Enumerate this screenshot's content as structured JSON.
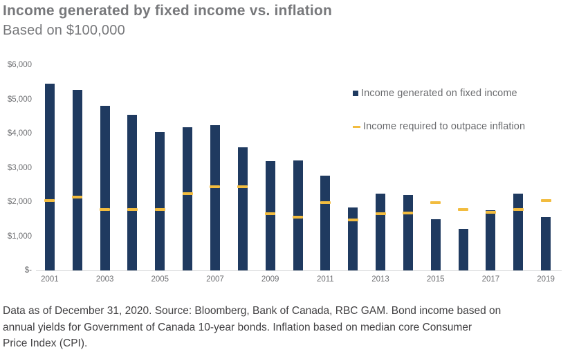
{
  "header": {
    "title": "Income generated by fixed income vs. inflation",
    "subtitle": "Based on $100,000"
  },
  "chart_data": {
    "type": "bar",
    "title": "Income generated by fixed income vs. inflation",
    "subtitle": "Based on $100,000",
    "categories": [
      2001,
      2002,
      2003,
      2004,
      2005,
      2006,
      2007,
      2008,
      2009,
      2010,
      2011,
      2012,
      2013,
      2014,
      2015,
      2016,
      2017,
      2018,
      2019
    ],
    "series": [
      {
        "name": "Income generated on fixed income",
        "type": "bar",
        "color": "#1f3a60",
        "values": [
          5450,
          5280,
          4800,
          4550,
          4050,
          4180,
          4250,
          3600,
          3200,
          3210,
          2770,
          1830,
          2250,
          2200,
          1500,
          1220,
          1750,
          2250,
          1550
        ]
      },
      {
        "name": "Income required to outpace inflation",
        "type": "dash",
        "color": "#f2bc3f",
        "values": [
          2050,
          2150,
          1780,
          1780,
          1780,
          2250,
          2450,
          2450,
          1650,
          1550,
          1980,
          1480,
          1650,
          1680,
          1980,
          1780,
          1700,
          1780,
          2050
        ]
      }
    ],
    "ylim": [
      0,
      6000
    ],
    "y_ticks": [
      {
        "label": "$6,000",
        "value": 6000
      },
      {
        "label": "$5,000",
        "value": 5000
      },
      {
        "label": "$4,000",
        "value": 4000
      },
      {
        "label": "$3,000",
        "value": 3000
      },
      {
        "label": "$2,000",
        "value": 2000
      },
      {
        "label": "$1,000",
        "value": 1000
      },
      {
        "label": "$-",
        "value": 0
      }
    ],
    "x_tick_every": 2,
    "grid": false,
    "legend_position": "upper right"
  },
  "footnote": {
    "lines": [
      "Data as of December 31, 2020. Source: Bloomberg, Bank of Canada, RBC GAM. Bond income based on",
      "annual yields for Government of Canada 10-year bonds. Inflation based on median core Consumer",
      "Price Index (CPI)."
    ]
  }
}
